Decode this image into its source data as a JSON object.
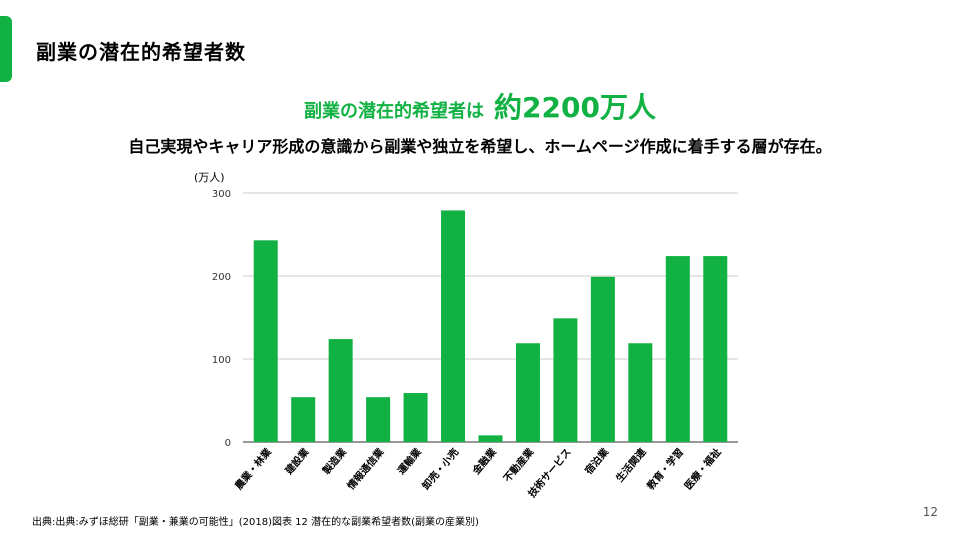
{
  "slide": {
    "title": "副業の潜在的希望者数",
    "headline_lead": "副業の潜在的希望者は",
    "headline_value": "約2200万人",
    "subheading": "自己実現やキャリア形成の意識から副業や独立を希望し、ホームページ作成に着手する層が存在。",
    "source": "出典:出典:みずほ総研「副業・兼業の可能性」(2018)図表 12 潜在的な副業希望者数(副業の産業別)",
    "page_number": "12"
  },
  "colors": {
    "accent": "#11b143",
    "bar": "#11b143",
    "grid": "#cccccc",
    "axis": "#333333"
  },
  "chart_data": {
    "type": "bar",
    "title": "",
    "xlabel": "",
    "ylabel": "(万人)",
    "ylim": [
      0,
      300
    ],
    "yticks": [
      0,
      100,
      200,
      300
    ],
    "grid": true,
    "categories": [
      "農業・林業",
      "建設業",
      "製造業",
      "情報通信業",
      "運輸業",
      "卸売・小売",
      "金融業",
      "不動産業",
      "技術サービス",
      "宿泊業",
      "生活関連",
      "教育・学習",
      "医療・福祉"
    ],
    "values": [
      243,
      54,
      124,
      54,
      59,
      279,
      8,
      119,
      149,
      199,
      119,
      224,
      224
    ]
  }
}
